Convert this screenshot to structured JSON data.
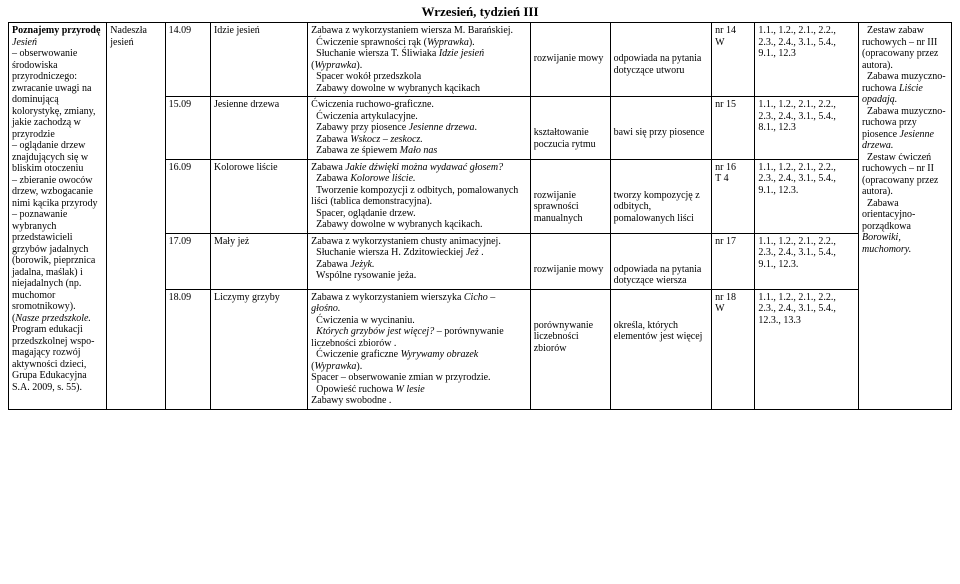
{
  "header": "Wrzesień, tydzień III",
  "col_main_block": {
    "title": "Poznajemy przyrodę",
    "text": "Jesień\n– obserwowanie środowiska przyrodniczego: zwracanie uwagi na dominującą kolorystykę, zmiany, jakie zachodzą w przyrodzie\n– oglądanie drzew znajdujących się w bliskim otoczeniu\n– zbieranie owoców drzew, wzbogacanie nimi kącika przyrody\n– poznawanie wybranych przedstawicieli grzybów jadalnych (borowik, pieprznica jadalna, maślak) i niejadalnych (np. muchomor sromotnikowy).\n(Nasze przedszkole. Program edukacji przedszkolnej wspo­magający roz­wój aktywności dzieci, Grupa Edukacyjna S.A. 2009, s. 55)."
  },
  "col2_block": "Nadeszła jesień",
  "rows": [
    {
      "date": "14.09",
      "theme": "Idzie jesień",
      "activities": "Zabawa z wykorzystaniem wiersza M. Barańskiej.\n  Ćwiczenie sprawności rąk (Wyprawka).\n  Słuchanie wiersza T. Śliwiaka Idzie jesień (Wyprawka).\n  Spacer wokół przedszkola\n  Zabawy dowolne w wybranych kącikach",
      "area": "rozwijanie mowy",
      "outcome": "odpowiada na pytania dotyczące utworu",
      "nr": "nr 14\nW",
      "refs": "1.1., 1.2., 2.1., 2.2., 2.3., 2.4., 3.1., 5.4., 9.1., 12.3"
    },
    {
      "date": "15.09",
      "theme": "Jesienne drzewa",
      "activities": "Ćwiczenia ruchowo-graficzne.\n  Ćwiczenia artykulacyjne.\n  Zabawy przy piosence Jesienne drzewa.\n  Zabawa Wskocz – zeskocz.\n  Zabawa ze śpiewem Mało nas",
      "area": "kształtowanie poczucia rytmu",
      "outcome": "bawi się przy piosence",
      "nr": "nr 15",
      "refs": "1.1., 1.2., 2.1., 2.2., 2.3., 2.4., 3.1., 5.4., 8.1., 12.3"
    },
    {
      "date": "16.09",
      "theme": "Kolorowe liście",
      "activities": "Zabawa Jakie dźwięki można wydawać głosem?\n  Zabawa Kolorowe liście.\n  Tworzenie kompozycji z odbitych, pomalowanych liści (tablica demonstracyjna).\n  Spacer, oglądanie drzew.\n  Zabawy dowolne w wybranych kącikach.",
      "area": "rozwijanie sprawności manualnych",
      "outcome": "tworzy kompozycję z odbitych, pomalowanych liści",
      "nr": "nr 16\nT 4",
      "refs": "1.1., 1.2., 2.1., 2.2., 2.3., 2.4., 3.1., 5.4., 9.1., 12.3."
    },
    {
      "date": "17.09",
      "theme": "Mały jeż",
      "activities": "Zabawa z wykorzystaniem chusty animacyjnej.\n  Słuchanie wiersza H. Zdzitowieckiej Jeż .\n  Zabawa Jeżyk.\n  Wspólne rysowanie jeża.",
      "area": "rozwijanie mowy",
      "outcome": "odpowiada na pytania dotyczące wiersza",
      "nr": "nr 17",
      "refs": "1.1., 1.2., 2.1., 2.2., 2.3., 2.4., 3.1., 5.4., 9.1., 12.3."
    },
    {
      "date": "18.09",
      "theme": "Liczymy grzyby",
      "activities": "Zabawa z wykorzystaniem wierszyka Cicho – głośno.\n  Ćwiczenia w wycinaniu.\n  Których grzybów jest więcej? – porównywanie liczebności zbiorów .\n  Ćwiczenie graficzne Wyrywamy obrazek (Wyprawka).\nSpacer – obserwowanie zmian w przyrodzie.\n  Opowieść ruchowa W lesie\nZabawy swobodne .",
      "area": "porównywanie liczebności zbiorów",
      "outcome": "określa, których elementów jest więcej",
      "nr": "nr 18\nW",
      "refs": "1.1., 1.2., 2.1., 2.2., 2.3., 2.4., 3.1., 5.4., 12.3., 13.3"
    }
  ],
  "col10_block": "  Zestaw zabaw ruchowych – nr III (opracowany przez autora).\n  Zabawa muzyczno-ruchowa Liście opadają.\n  Zabawa muzyczno-ruchowa przy piosence Jesienne drzewa.\n  Zestaw ćwiczeń ruchowych – nr II (opracowany przez autora).\n  Zabawa orientacyjno-porządkowa Borowiki, muchomory."
}
